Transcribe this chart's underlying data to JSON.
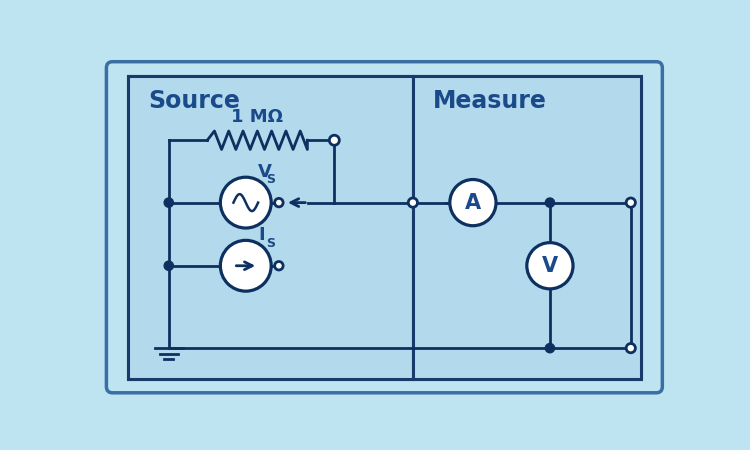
{
  "bg_outer": "#cce8f4",
  "bg_box": "#b3d9ed",
  "box_edge": "#1a3a6b",
  "line_color": "#0d3060",
  "line_width": 2.0,
  "dot_color": "#0d3060",
  "title_color": "#1a4a8a",
  "source_label": "Source",
  "measure_label": "Measure",
  "resistor_label": "1 MΩ",
  "vs_label": "V",
  "vs_sub": "S",
  "is_label": "I",
  "is_sub": "S",
  "A_label": "A",
  "V_label": "V",
  "outer_bg": "#bee4f2",
  "fig_bg": "#aed4e8"
}
